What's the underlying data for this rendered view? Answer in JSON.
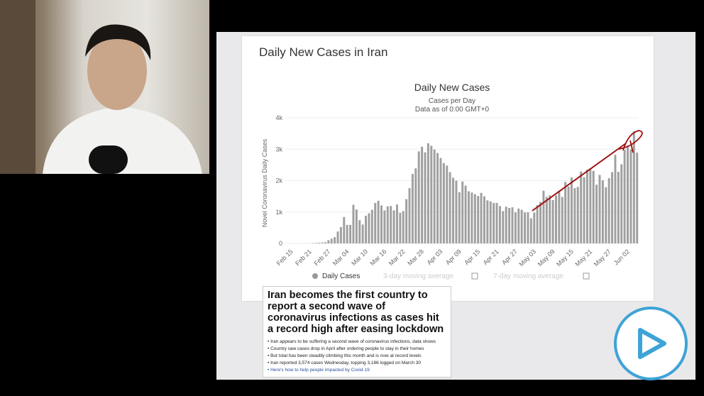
{
  "slide": {
    "title": "Daily New Cases in Iran"
  },
  "chart_data": {
    "type": "bar",
    "title": "Daily New Cases",
    "subtitle": "Cases per Day",
    "subtitle2": "Data as of 0:00 GMT+0",
    "ylabel": "Novel Coronavirus Daily Cases",
    "xlabel": "",
    "ylim": [
      0,
      4000
    ],
    "yticks": [
      "0",
      "1k",
      "2k",
      "3k",
      "4k"
    ],
    "xticks": [
      "Feb 15",
      "Feb 21",
      "Feb 27",
      "Mar 04",
      "Mar 10",
      "Mar 16",
      "Mar 22",
      "Mar 28",
      "Apr 03",
      "Apr 09",
      "Apr 15",
      "Apr 21",
      "Apr 27",
      "May 03",
      "May 09",
      "May 15",
      "May 21",
      "May 27",
      "Jun 02"
    ],
    "grid": true,
    "legend": {
      "placement": "bottom",
      "items": [
        "Daily Cases",
        "3-day moving average",
        "7-day moving average"
      ]
    },
    "bar_color": "#a0a0a0",
    "annotation_color": "#a01010",
    "values": [
      0,
      0,
      0,
      0,
      0,
      0,
      0,
      10,
      15,
      20,
      30,
      40,
      100,
      150,
      200,
      380,
      520,
      840,
      590,
      590,
      1230,
      1080,
      740,
      600,
      880,
      960,
      1070,
      1290,
      1360,
      1210,
      1050,
      1180,
      1190,
      1050,
      1240,
      970,
      1030,
      1410,
      1760,
      2210,
      2390,
      2930,
      3080,
      2900,
      3190,
      3110,
      2990,
      2880,
      2720,
      2560,
      2480,
      2270,
      2090,
      2000,
      1630,
      1970,
      1840,
      1660,
      1620,
      1570,
      1510,
      1610,
      1500,
      1370,
      1340,
      1290,
      1290,
      1190,
      1030,
      1170,
      1130,
      1150,
      990,
      1110,
      1070,
      990,
      990,
      800,
      980,
      1220,
      1320,
      1680,
      1480,
      1530,
      1380,
      1530,
      1680,
      1480,
      1960,
      1810,
      2100,
      1760,
      1800,
      2290,
      2110,
      2350,
      2390,
      2310,
      1870,
      2180,
      2010,
      1790,
      2080,
      2270,
      2820,
      2280,
      2520,
      2980,
      3120,
      2990,
      3570,
      2890
    ]
  },
  "news": {
    "headline": "Iran becomes the first country to report a second wave of coronavirus infections as cases hit a record high after easing lockdown",
    "bullets": [
      "Iran appears to be suffering a second wave of coronavirus infections, data shows",
      "Country saw cases drop in April after ordering people to stay in their homes",
      "But total has been steadily climbing this month and is now at record levels",
      "Iran reported 3,574 cases Wednesday, topping 3,186 logged on March 30"
    ],
    "link": "Here's how to help people impacted by Covid-19"
  },
  "player": {
    "icon": "play-icon",
    "accent": "#3ea3d6"
  }
}
